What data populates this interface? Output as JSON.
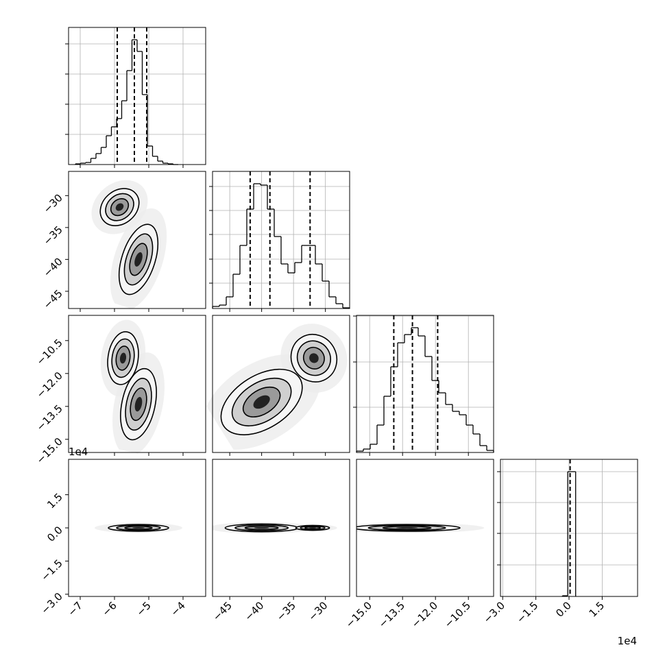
{
  "chart_data": {
    "type": "corner",
    "grid": true,
    "color": "#000000",
    "params": [
      {
        "lim": [
          -7.34,
          -3.34
        ],
        "ticks": [
          {
            "value": -7,
            "label": "−7"
          },
          {
            "value": -6,
            "label": "−6"
          },
          {
            "value": -5,
            "label": "−5"
          },
          {
            "value": -4,
            "label": "−4"
          }
        ]
      },
      {
        "lim": [
          -47.7,
          -26.2
        ],
        "ticks": [
          {
            "value": -45,
            "label": "−45"
          },
          {
            "value": -40,
            "label": "−40"
          },
          {
            "value": -35,
            "label": "−35"
          },
          {
            "value": -30,
            "label": "−30"
          }
        ]
      },
      {
        "lim": [
          -15.6,
          -9.35
        ],
        "ticks": [
          {
            "value": -15,
            "label": "−15.0"
          },
          {
            "value": -13.5,
            "label": "−13.5"
          },
          {
            "value": -12,
            "label": "−12.0"
          },
          {
            "value": -10.5,
            "label": "−10.5"
          }
        ]
      },
      {
        "lim": [
          -3.1,
          3.1
        ],
        "ticks": [
          {
            "value": -3,
            "label": "−3.0"
          },
          {
            "value": -1.5,
            "label": "−1.5"
          },
          {
            "value": 0,
            "label": "0.0"
          },
          1.5
        ]
      }
    ],
    "histograms": [
      {
        "bins": [
          -7.14,
          -6.99,
          -6.84,
          -6.69,
          -6.54,
          -6.39,
          -6.24,
          -6.09,
          -5.94,
          -5.79,
          -5.64,
          -5.49,
          -5.34,
          -5.19,
          -5.04,
          -4.89,
          -4.74,
          -4.59,
          -4.44,
          -4.29,
          -4.14
        ],
        "counts": [
          1,
          2,
          3,
          9,
          16,
          25,
          42,
          55,
          67,
          93,
          137,
          182,
          165,
          102,
          27,
          12,
          5,
          2,
          1,
          0
        ],
        "ylim": [
          0,
          200
        ],
        "yticks": [
          44,
          88,
          132,
          176
        ],
        "quantiles": [
          -5.92,
          -5.42,
          -5.06
        ]
      },
      {
        "bins": [
          -47.7,
          -46.625,
          -45.55,
          -44.475,
          -43.4,
          -42.325,
          -41.25,
          -40.175,
          -39.1,
          -38.025,
          -36.95,
          -35.875,
          -34.8,
          -33.725,
          -32.65,
          -31.575,
          -30.5,
          -29.425,
          -28.35,
          -27.275,
          -26.2
        ],
        "counts": [
          3,
          5,
          17,
          50,
          92,
          145,
          182,
          180,
          145,
          105,
          65,
          52,
          67,
          92,
          92,
          65,
          40,
          17,
          7,
          1
        ],
        "ylim": [
          0,
          200
        ],
        "yticks": [
          37,
          72,
          108,
          143,
          178
        ],
        "quantiles": [
          -41.8,
          -38.7,
          -32.4
        ]
      },
      {
        "bins": [
          -15.6,
          -15.2875,
          -14.975,
          -14.6625,
          -14.35,
          -14.0375,
          -13.725,
          -13.4125,
          -13.1,
          -12.7875,
          -12.475,
          -12.1625,
          -11.85,
          -11.5375,
          -11.225,
          -10.9125,
          -10.6,
          -10.2875,
          -9.975,
          -9.6625,
          -9.35
        ],
        "counts": [
          2,
          5,
          12,
          40,
          82,
          125,
          160,
          172,
          182,
          170,
          140,
          105,
          87,
          70,
          60,
          55,
          40,
          27,
          10,
          3
        ],
        "ylim": [
          0,
          200
        ],
        "yticks": [
          66,
          132,
          199
        ],
        "quantiles": [
          -13.9,
          -13.05,
          -11.9
        ]
      },
      {
        "bins": [
          -0.3,
          -0.06,
          0.3
        ],
        "counts": [
          1,
          182
        ],
        "ylim": [
          0,
          200
        ],
        "yticks": [
          46,
          92,
          137,
          182
        ],
        "quantiles": [
          0.05
        ]
      }
    ],
    "panels": [
      {
        "x": 0,
        "y": 1,
        "blobs": [
          {
            "x": -5.85,
            "y": -31.8,
            "sx": 0.22,
            "sy": 1.5,
            "angle": 50
          },
          {
            "x": -5.3,
            "y": -40,
            "sx": 0.22,
            "sy": 2.6,
            "angle": 18
          }
        ]
      },
      {
        "x": 0,
        "y": 2,
        "blobs": [
          {
            "x": -5.75,
            "y": -11.3,
            "sx": 0.2,
            "sy": 0.55,
            "angle": 8
          },
          {
            "x": -5.3,
            "y": -13.4,
            "sx": 0.22,
            "sy": 0.75,
            "angle": 12
          }
        ]
      },
      {
        "x": 1,
        "y": 2,
        "blobs": [
          {
            "x": -40,
            "y": -13.3,
            "sx": 3.2,
            "sy": 0.55,
            "angle": -32
          },
          {
            "x": -31.8,
            "y": -11.3,
            "sx": 1.6,
            "sy": 0.5,
            "angle": -30
          }
        ]
      },
      {
        "x": 0,
        "y": 3,
        "blobs": [
          {
            "x": -5.3,
            "y": 0,
            "sx": 0.4,
            "sy": 0.07,
            "angle": 0
          }
        ]
      },
      {
        "x": 1,
        "y": 3,
        "blobs": [
          {
            "x": -40,
            "y": 0,
            "sx": 2.6,
            "sy": 0.08,
            "angle": 0
          },
          {
            "x": -32,
            "y": 0,
            "sx": 1.2,
            "sy": 0.05,
            "angle": 0
          }
        ]
      },
      {
        "x": 2,
        "y": 3,
        "blobs": [
          {
            "x": -13.3,
            "y": 0,
            "sx": 1.1,
            "sy": 0.07,
            "angle": 0
          }
        ]
      }
    ],
    "offset_labels": [
      "1e4",
      "1e4"
    ]
  }
}
